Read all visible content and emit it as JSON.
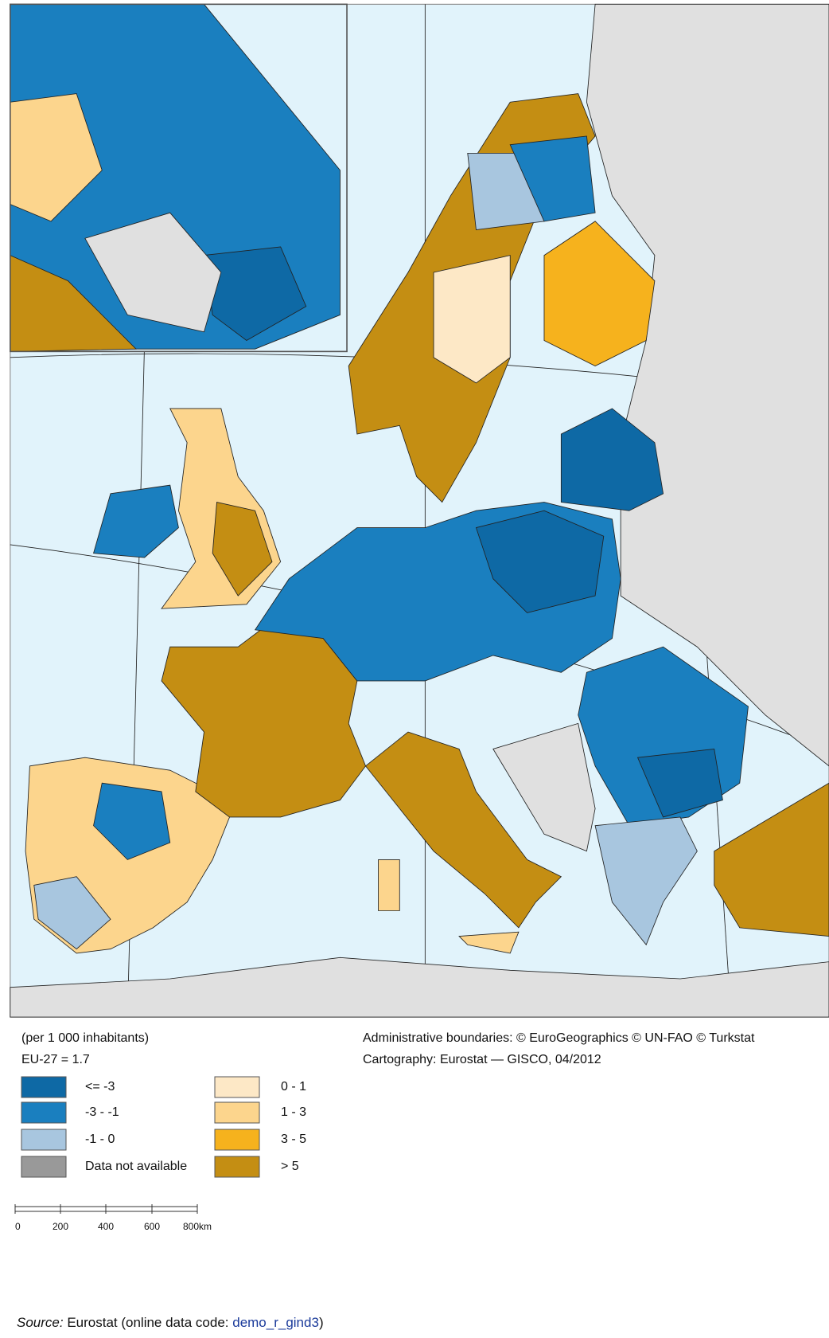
{
  "legend": {
    "title": "(per 1 000 inhabitants)",
    "eu_average": "EU-27 = 1.7",
    "items": [
      {
        "label": "<= -3",
        "color": "#0e69a5"
      },
      {
        "label": "-3 - -1",
        "color": "#1a7fbf"
      },
      {
        "label": "-1 - 0",
        "color": "#a8c6df"
      },
      {
        "label": "Data not available",
        "color": "#999999"
      },
      {
        "label": "0 - 1",
        "color": "#fde8c6"
      },
      {
        "label": "1 - 3",
        "color": "#fcd58d"
      },
      {
        "label": "3 - 5",
        "color": "#f6b21d"
      },
      {
        "label": "> 5",
        "color": "#c48e13"
      }
    ]
  },
  "credits": [
    "Administrative boundaries: © EuroGeographics © UN-FAO © Turkstat",
    "Cartography: Eurostat — GISCO, 04/2012"
  ],
  "scale_bar": {
    "labels": [
      "0",
      "200",
      "400",
      "600",
      "800km"
    ]
  },
  "source": {
    "prefix": "Source:",
    "text": " Eurostat (online data code: ",
    "code": "demo_r_gind3",
    "suffix": ")"
  }
}
